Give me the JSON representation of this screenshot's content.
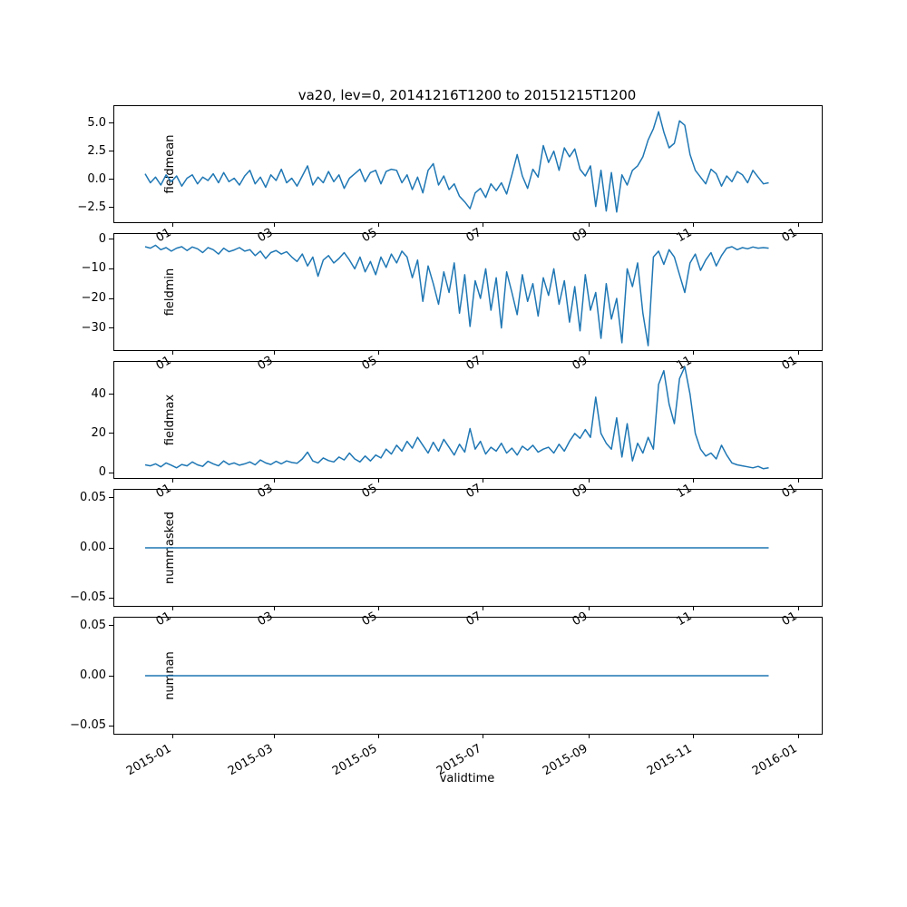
{
  "chart_data": {
    "type": "line",
    "title": "va20, lev=0, 20141216T1200 to 20151215T1200",
    "xlabel": "validtime",
    "line_color": "#1f77b4",
    "legend": "none",
    "grid": false,
    "x_axis": {
      "min": -3,
      "max": 410,
      "tick_days": [
        31,
        90,
        151,
        212,
        274,
        335,
        396
      ],
      "tick_labels": [
        "2015-01",
        "2015-03",
        "2015-05",
        "2015-07",
        "2015-09",
        "2015-11",
        "2016-01"
      ],
      "fragment_labels": [
        "01",
        "03",
        "05",
        "07",
        "09",
        "11",
        "01"
      ]
    },
    "series_x": {
      "start_day": 15,
      "end_day": 379
    },
    "subplots": [
      {
        "ylabel": "fieldmean",
        "ylim": [
          -3.8,
          6.5
        ],
        "yticks": [
          5.0,
          2.5,
          0.0,
          -2.5
        ],
        "ytick_labels": [
          "5.0",
          "2.5",
          "0.0",
          "−2.5"
        ],
        "values": [
          0.5,
          -0.3,
          0.2,
          -0.5,
          0.4,
          -0.2,
          0.3,
          -0.6,
          0.1,
          0.4,
          -0.4,
          0.2,
          -0.1,
          0.5,
          -0.3,
          0.6,
          -0.2,
          0.1,
          -0.5,
          0.3,
          0.8,
          -0.4,
          0.2,
          -0.7,
          0.4,
          -0.1,
          0.9,
          -0.3,
          0.1,
          -0.6,
          0.3,
          1.2,
          -0.5,
          0.2,
          -0.3,
          0.7,
          -0.2,
          0.4,
          -0.8,
          0.1,
          0.5,
          0.9,
          -0.2,
          0.6,
          0.8,
          -0.4,
          0.7,
          0.9,
          0.8,
          -0.3,
          0.4,
          -0.9,
          0.2,
          -1.2,
          0.8,
          1.4,
          -0.5,
          0.3,
          -0.9,
          -0.4,
          -1.5,
          -2.0,
          -2.6,
          -1.2,
          -0.8,
          -1.6,
          -0.4,
          -1.0,
          -0.3,
          -1.3,
          0.4,
          2.2,
          0.3,
          -0.8,
          0.9,
          0.2,
          3.0,
          1.5,
          2.5,
          0.8,
          2.8,
          2.0,
          2.7,
          0.9,
          0.3,
          1.2,
          -2.4,
          0.8,
          -2.8,
          0.6,
          -2.9,
          0.4,
          -0.5,
          0.8,
          1.2,
          2.0,
          3.5,
          4.5,
          6.0,
          4.2,
          2.8,
          3.2,
          5.2,
          4.8,
          2.2,
          0.8,
          0.2,
          -0.4,
          0.9,
          0.5,
          -0.6,
          0.3,
          -0.2,
          0.7,
          0.4,
          -0.3,
          0.8,
          0.2,
          -0.4,
          -0.3
        ]
      },
      {
        "ylabel": "fieldmin",
        "ylim": [
          -37.5,
          1.8
        ],
        "yticks": [
          0,
          -10,
          -20,
          -30
        ],
        "ytick_labels": [
          "0",
          "−10",
          "−20",
          "−30"
        ],
        "values": [
          -2.5,
          -3.0,
          -2.0,
          -3.5,
          -2.8,
          -4.0,
          -3.0,
          -2.5,
          -3.8,
          -2.6,
          -3.2,
          -4.5,
          -2.8,
          -3.5,
          -5.0,
          -3.0,
          -4.2,
          -3.6,
          -2.8,
          -4.0,
          -3.5,
          -5.5,
          -4.0,
          -6.5,
          -4.5,
          -3.8,
          -5.0,
          -4.2,
          -6.0,
          -7.5,
          -5.0,
          -9.0,
          -6.0,
          -12.5,
          -7.0,
          -5.5,
          -8.0,
          -6.5,
          -4.5,
          -7.0,
          -10.0,
          -6.0,
          -11.0,
          -7.5,
          -12.0,
          -6.0,
          -9.5,
          -5.0,
          -8.0,
          -4.0,
          -6.0,
          -13.0,
          -7.0,
          -21.0,
          -9.0,
          -15.0,
          -22.0,
          -11.0,
          -18.0,
          -8.0,
          -25.0,
          -12.0,
          -29.5,
          -14.0,
          -20.0,
          -10.0,
          -24.0,
          -13.0,
          -30.0,
          -11.0,
          -18.0,
          -25.5,
          -12.0,
          -21.0,
          -15.0,
          -26.0,
          -13.0,
          -19.0,
          -10.0,
          -22.0,
          -14.0,
          -28.0,
          -16.0,
          -31.0,
          -12.0,
          -24.0,
          -18.0,
          -33.5,
          -15.0,
          -27.0,
          -20.0,
          -35.0,
          -10.0,
          -16.0,
          -8.0,
          -25.0,
          -36.0,
          -6.0,
          -4.0,
          -8.5,
          -3.5,
          -6.0,
          -12.0,
          -18.0,
          -8.0,
          -5.0,
          -10.5,
          -7.0,
          -4.5,
          -9.0,
          -5.5,
          -3.0,
          -2.5,
          -3.5,
          -2.8,
          -3.2,
          -2.6,
          -3.0,
          -2.8,
          -3.0
        ]
      },
      {
        "ylabel": "fieldmax",
        "ylim": [
          -2.7,
          56.5
        ],
        "yticks": [
          0,
          20,
          40
        ],
        "ytick_labels": [
          "0",
          "20",
          "40"
        ],
        "values": [
          4.0,
          3.5,
          4.5,
          3.0,
          5.0,
          3.8,
          2.5,
          4.2,
          3.5,
          5.5,
          4.0,
          3.2,
          5.8,
          4.5,
          3.5,
          6.0,
          4.2,
          5.0,
          3.8,
          4.5,
          5.5,
          4.0,
          6.5,
          5.0,
          4.2,
          5.8,
          4.5,
          6.0,
          5.2,
          4.8,
          7.0,
          10.5,
          6.0,
          5.0,
          7.5,
          6.2,
          5.5,
          8.0,
          6.5,
          10.0,
          7.0,
          5.5,
          8.5,
          6.0,
          9.0,
          7.5,
          12.0,
          9.5,
          14.0,
          11.0,
          16.0,
          12.5,
          18.0,
          14.0,
          10.0,
          15.5,
          11.0,
          17.0,
          13.0,
          9.0,
          14.5,
          10.5,
          22.5,
          12.0,
          16.0,
          9.5,
          13.0,
          11.0,
          15.0,
          10.0,
          12.5,
          9.0,
          13.5,
          11.5,
          14.0,
          10.5,
          12.0,
          13.0,
          10.0,
          14.5,
          11.0,
          16.0,
          20.0,
          17.5,
          22.0,
          18.0,
          38.5,
          20.0,
          15.0,
          12.0,
          28.0,
          8.0,
          25.0,
          6.0,
          15.0,
          10.0,
          18.0,
          12.0,
          45.0,
          52.0,
          35.0,
          25.0,
          48.0,
          54.0,
          40.0,
          20.0,
          12.0,
          8.5,
          10.0,
          7.0,
          14.0,
          9.0,
          5.0,
          4.0,
          3.5,
          3.0,
          2.5,
          3.2,
          2.0,
          2.5
        ]
      },
      {
        "ylabel": "nummasked",
        "ylim": [
          -0.058,
          0.058
        ],
        "yticks": [
          0.05,
          0.0,
          -0.05
        ],
        "ytick_labels": [
          "0.05",
          "0.00",
          "−0.05"
        ],
        "constant": 0.0
      },
      {
        "ylabel": "numnan",
        "ylim": [
          -0.058,
          0.058
        ],
        "yticks": [
          0.05,
          0.0,
          -0.05
        ],
        "ytick_labels": [
          "0.05",
          "0.00",
          "−0.05"
        ],
        "constant": 0.0
      }
    ]
  }
}
